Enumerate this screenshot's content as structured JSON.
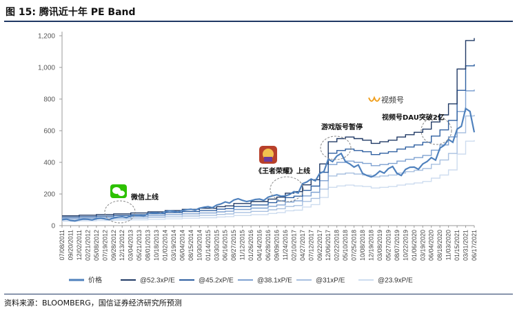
{
  "figure": {
    "title": "图 15:  腾讯近十年 PE Band",
    "source": "资料来源：BLOOMBERG，国信证券经济研究所预测"
  },
  "chart_data": {
    "type": "line",
    "ylim": [
      0,
      1200
    ],
    "yticks": [
      "0",
      "200",
      "400",
      "600",
      "800",
      "1,000",
      "1,200"
    ],
    "grid": false,
    "legend_position": "bottom",
    "x": [
      "07/08/2011",
      "09/20/2011",
      "12/02/2011",
      "02/21/2012",
      "05/08/2012",
      "07/19/2012",
      "09/28/2012",
      "12/13/2012",
      "03/04/2013",
      "05/21/2013",
      "08/01/2013",
      "10/18/2013",
      "01/02/2014",
      "03/19/2014",
      "06/04/2014",
      "08/15/2014",
      "10/30/2014",
      "01/14/2015",
      "03/30/2015",
      "06/16/2015",
      "08/27/2015",
      "11/12/2015",
      "01/26/2016",
      "04/14/2016",
      "06/28/2016",
      "09/09/2016",
      "11/24/2016",
      "02/10/2017",
      "04/27/2017",
      "07/12/2017",
      "09/22/2017",
      "12/06/2017",
      "02/22/2018",
      "05/10/2018",
      "07/25/2018",
      "10/08/2018",
      "12/19/2018",
      "03/08/2019",
      "05/27/2019",
      "08/07/2019",
      "10/22/2019",
      "01/06/2020",
      "03/19/2020",
      "06/04/2020",
      "08/18/2020",
      "11/03/2020",
      "01/15/2021",
      "03/31/2021",
      "06/17/2021"
    ],
    "series": [
      {
        "name": "价格",
        "color": "#4f81bd",
        "values": [
          37,
          33,
          37,
          40,
          44,
          42,
          49,
          56,
          60,
          65,
          75,
          81,
          88,
          91,
          95,
          104,
          110,
          120,
          130,
          150,
          162,
          160,
          158,
          168,
          180,
          195,
          188,
          215,
          265,
          295,
          330,
          420,
          440,
          405,
          370,
          330,
          308,
          345,
          360,
          330,
          355,
          370,
          390,
          430,
          490,
          545,
          610,
          740,
          590
        ]
      },
      {
        "name": "@52.3xP/E",
        "color": "#1f3864",
        "values": [
          62,
          62,
          66,
          66,
          70,
          70,
          74,
          74,
          80,
          80,
          87,
          87,
          95,
          95,
          103,
          103,
          110,
          110,
          120,
          125,
          140,
          140,
          152,
          152,
          168,
          180,
          205,
          215,
          258,
          290,
          390,
          530,
          550,
          560,
          550,
          540,
          520,
          530,
          540,
          560,
          575,
          590,
          610,
          655,
          700,
          770,
          990,
          1170,
          1185
        ]
      },
      {
        "name": "@45.2xP/E",
        "color": "#2e5fa0",
        "values": [
          54,
          54,
          57,
          57,
          60,
          60,
          64,
          64,
          69,
          69,
          75,
          75,
          82,
          82,
          89,
          89,
          95,
          95,
          104,
          108,
          121,
          121,
          131,
          131,
          145,
          156,
          177,
          186,
          223,
          250,
          337,
          458,
          475,
          484,
          475,
          467,
          449,
          458,
          467,
          484,
          497,
          510,
          527,
          566,
          605,
          665,
          855,
          1010,
          1020
        ]
      },
      {
        "name": "@38.1xP/E",
        "color": "#7ea1d1",
        "values": [
          45,
          45,
          48,
          48,
          51,
          51,
          54,
          54,
          58,
          58,
          63,
          63,
          69,
          69,
          75,
          75,
          80,
          80,
          87,
          91,
          102,
          102,
          111,
          111,
          122,
          131,
          149,
          157,
          188,
          211,
          284,
          386,
          400,
          408,
          400,
          393,
          379,
          386,
          393,
          408,
          419,
          430,
          444,
          477,
          510,
          561,
          721,
          852,
          860
        ]
      },
      {
        "name": "@31xP/E",
        "color": "#a8c0e0",
        "values": [
          37,
          37,
          39,
          39,
          42,
          42,
          44,
          44,
          48,
          48,
          52,
          52,
          56,
          56,
          61,
          61,
          65,
          65,
          71,
          74,
          83,
          83,
          90,
          90,
          100,
          107,
          121,
          127,
          153,
          172,
          231,
          314,
          326,
          332,
          326,
          320,
          308,
          314,
          320,
          332,
          341,
          350,
          361,
          388,
          415,
          456,
          587,
          693,
          700
        ]
      },
      {
        "name": "@23.9xP/E",
        "color": "#cddcef",
        "values": [
          28,
          28,
          30,
          30,
          32,
          32,
          34,
          34,
          37,
          37,
          40,
          40,
          43,
          43,
          47,
          47,
          50,
          50,
          55,
          57,
          64,
          64,
          69,
          69,
          77,
          82,
          94,
          98,
          118,
          133,
          178,
          242,
          251,
          256,
          251,
          247,
          238,
          242,
          247,
          256,
          263,
          270,
          279,
          300,
          320,
          352,
          452,
          534,
          540
        ]
      }
    ],
    "annotations": [
      {
        "text": "微信上线",
        "x_index": 7,
        "y": 190
      },
      {
        "text": "《王者荣耀》上线",
        "x_index": 26,
        "y": 340
      },
      {
        "text": "游戏版号暂停",
        "x_index": 31,
        "y": 630
      },
      {
        "text": "视频号DAU突破2亿",
        "x_index": 43,
        "y": 700
      },
      {
        "text": "视频号",
        "x_index": 42,
        "y": 790
      }
    ]
  }
}
